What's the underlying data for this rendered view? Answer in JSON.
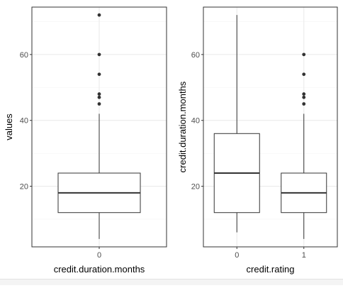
{
  "colors": {
    "panel_border": "#333333",
    "grid_major": "#ebebeb",
    "grid_minor": "#f5f5f5",
    "box_line": "#333333",
    "box_fill": "#ffffff",
    "outlier": "#333333",
    "tick_text": "#4d4d4d",
    "title_text": "#000000"
  },
  "chart_data": [
    {
      "type": "boxplot",
      "xlabel": "credit.duration.months",
      "ylabel": "values",
      "categories": [
        "0"
      ],
      "y_ticks": [
        20,
        40,
        60
      ],
      "ylim": [
        1.6,
        74.4
      ],
      "grid": true,
      "boxes": [
        {
          "category": "0",
          "whisker_low": 4,
          "q1": 12,
          "median": 18,
          "q3": 24,
          "whisker_high": 42,
          "outliers": [
            45,
            47,
            48,
            54,
            60,
            72
          ]
        }
      ]
    },
    {
      "type": "boxplot",
      "xlabel": "credit.rating",
      "ylabel": "credit.duration.months",
      "categories": [
        "0",
        "1"
      ],
      "y_ticks": [
        20,
        40,
        60
      ],
      "ylim": [
        1.6,
        74.4
      ],
      "grid": true,
      "boxes": [
        {
          "category": "0",
          "whisker_low": 6,
          "q1": 12,
          "median": 24,
          "q3": 36,
          "whisker_high": 72,
          "outliers": []
        },
        {
          "category": "1",
          "whisker_low": 4,
          "q1": 12,
          "median": 18,
          "q3": 24,
          "whisker_high": 42,
          "outliers": [
            45,
            47,
            48,
            54,
            60
          ]
        }
      ]
    }
  ]
}
